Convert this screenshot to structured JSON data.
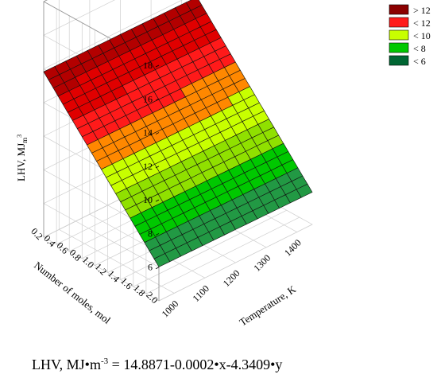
{
  "chart_data": {
    "type": "surface3d",
    "equation": {
      "lhs": "LHV, MJ•m",
      "exponent": "-3",
      "rhs": " = 14.8871-0.0002•x-4.3409•y"
    },
    "coefficients": {
      "intercept": 14.8871,
      "x": -0.0002,
      "y": -4.3409
    },
    "x_axis": {
      "label": "Temperature, K",
      "ticks": [
        "1000",
        "1100",
        "1200",
        "1300",
        "1400"
      ],
      "range": [
        950,
        1450
      ]
    },
    "y_axis": {
      "label": "Number of moles, mol",
      "ticks": [
        "0.2",
        "0.4",
        "0.6",
        "0.8",
        "1.0",
        "1.2",
        "1.4",
        "1.6",
        "1.8",
        "2.0"
      ],
      "range": [
        0.2,
        2.0
      ]
    },
    "z_axis": {
      "label": "LHV, MJ",
      "label_sub": "m",
      "label_sup": "3",
      "ticks": [
        "6",
        "8",
        "10",
        "12",
        "14",
        "16",
        "18"
      ],
      "range": [
        4,
        18
      ]
    },
    "legend": [
      {
        "label": "> 12",
        "color": "#8b0000"
      },
      {
        "label": "< 12",
        "color": "#ff1a1a"
      },
      {
        "label": "< 10",
        "color": "#c8ff00"
      },
      {
        "label": "< 8",
        "color": "#00c800"
      },
      {
        "label": "< 6",
        "color": "#006633"
      }
    ],
    "grid": true,
    "legend_position": "top-right"
  }
}
